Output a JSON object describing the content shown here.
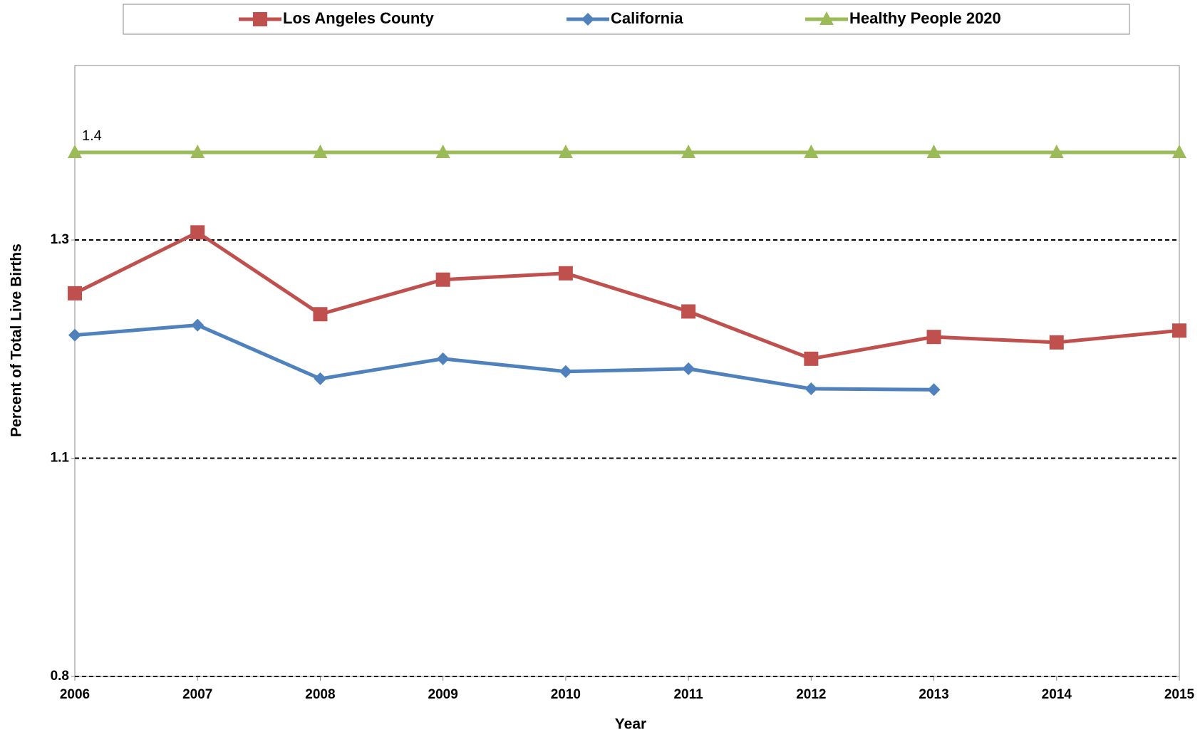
{
  "chart_data": {
    "type": "line",
    "x_label": "Year",
    "y_label": "Percent of Total Live Births",
    "categories": [
      "2006",
      "2007",
      "2008",
      "2009",
      "2010",
      "2011",
      "2012",
      "2013",
      "2014",
      "2015"
    ],
    "series": [
      {
        "name": "Los Angeles County",
        "color": "#c0504d",
        "marker": "square",
        "values": [
          1.245,
          1.312,
          1.222,
          1.26,
          1.267,
          1.225,
          1.173,
          1.197,
          1.191,
          1.204
        ]
      },
      {
        "name": "California",
        "color": "#4f81bd",
        "marker": "diamond",
        "values": [
          1.199,
          1.21,
          1.151,
          1.173,
          1.159,
          1.162,
          1.14,
          1.139,
          null,
          null
        ]
      },
      {
        "name": "Healthy People 2020",
        "color": "#9bbb59",
        "marker": "triangle",
        "values": [
          1.4,
          1.4,
          1.4,
          1.4,
          1.4,
          1.4,
          1.4,
          1.4,
          1.4,
          1.4
        ]
      }
    ],
    "annotation": "1.4",
    "ylim": [
      0.8236,
      1.4955
    ],
    "yticks": [
      {
        "value": 0.8236,
        "label": "0.8"
      },
      {
        "value": 1.0636,
        "label": "1.1"
      },
      {
        "value": 1.3036,
        "label": "1.3"
      }
    ],
    "grid": true,
    "legend": "top"
  }
}
